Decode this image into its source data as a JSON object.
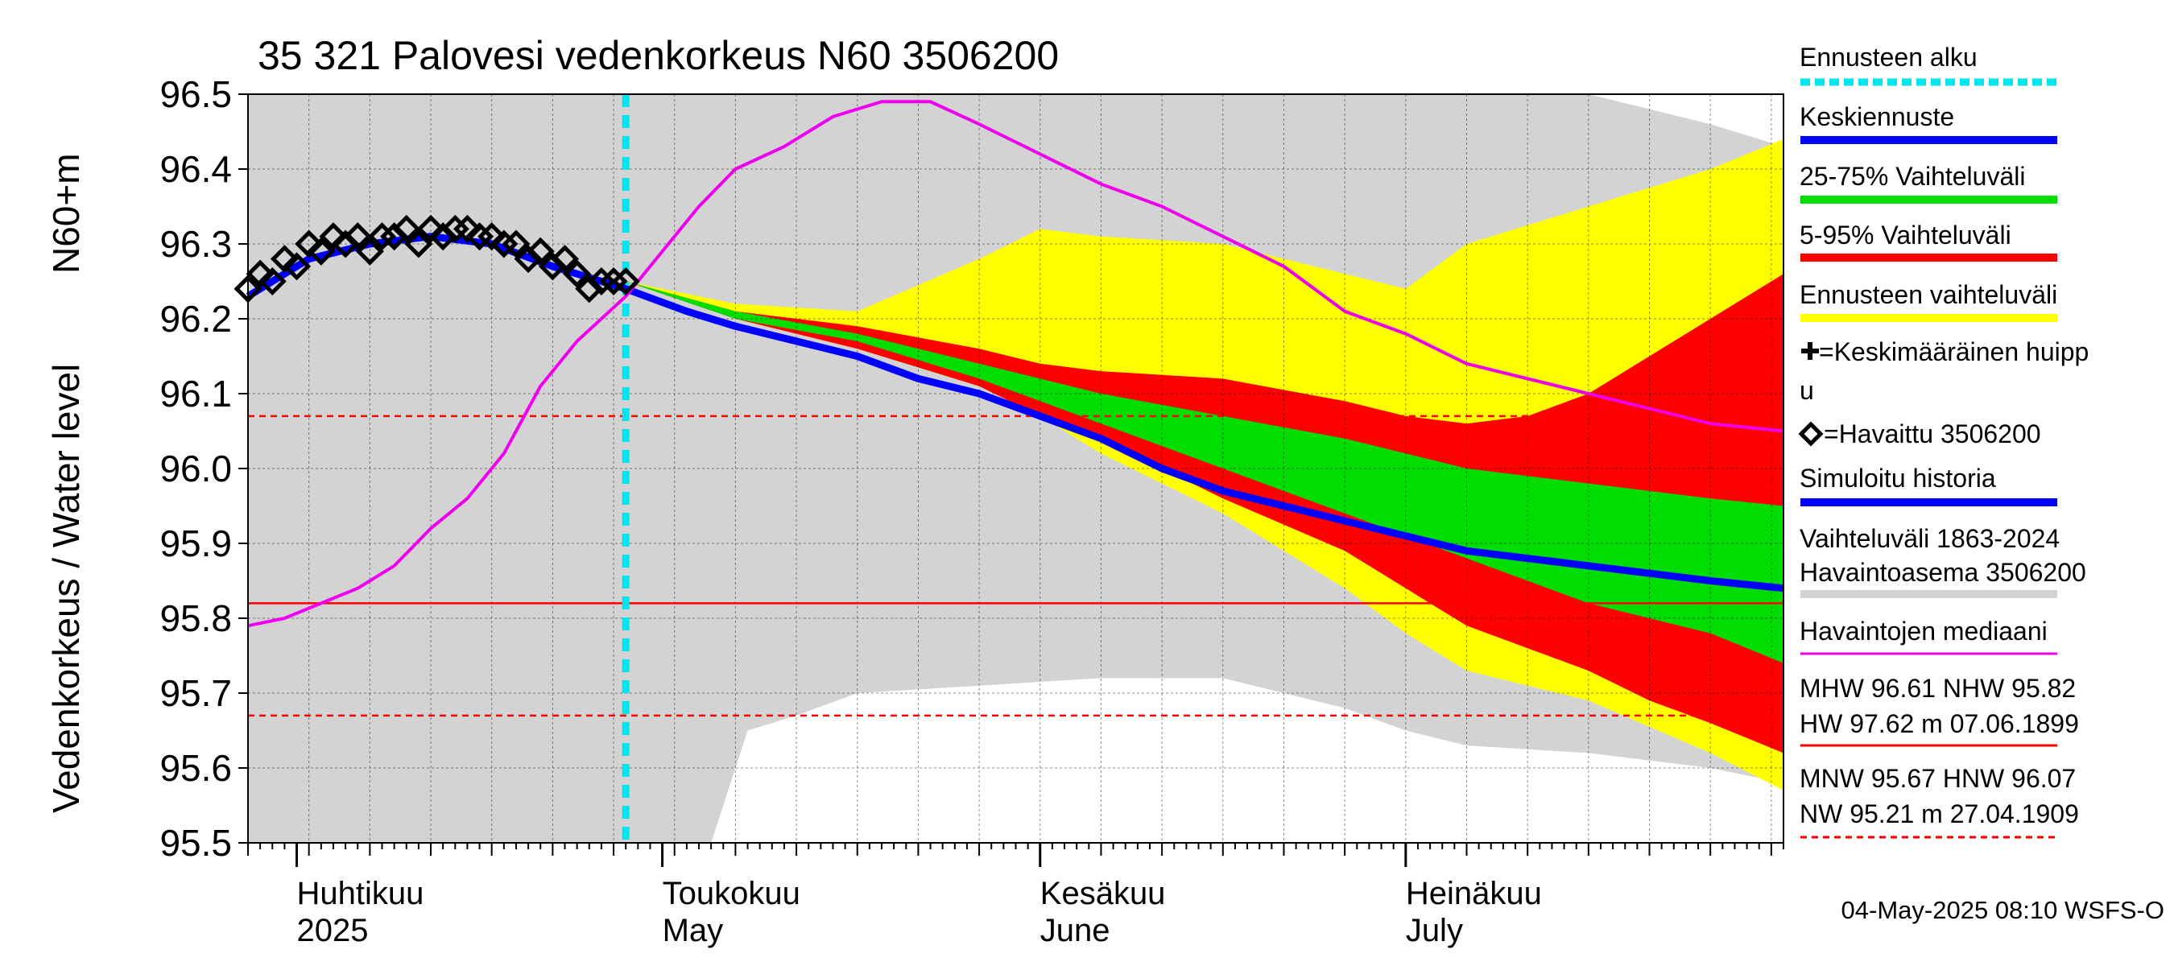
{
  "chart_data": {
    "type": "line",
    "title": "35 321 Palovesi vedenkorkeus N60 3506200",
    "ylabel": "Vedenkorkeus / Water level",
    "ylabel_unit": "N60+m",
    "ylim": [
      95.5,
      96.5
    ],
    "yticks": [
      "95.5",
      "95.6",
      "95.7",
      "95.8",
      "95.9",
      "96.0",
      "96.1",
      "96.2",
      "96.3",
      "96.4",
      "96.5"
    ],
    "x_range_days": [
      0,
      126
    ],
    "x_start_date": "2025-03-28",
    "months": [
      {
        "fi": "Huhtikuu",
        "en": "2025",
        "day": 4
      },
      {
        "fi": "Toukokuu",
        "en": "May",
        "day": 34
      },
      {
        "fi": "Kesäkuu",
        "en": "June",
        "day": 65
      },
      {
        "fi": "Heinäkuu",
        "en": "July",
        "day": 95
      }
    ],
    "forecast_start_day": 31,
    "reference_lines": [
      {
        "name": "NHW",
        "value": 95.82,
        "style": "solid"
      },
      {
        "name": "HNW",
        "value": 96.07,
        "style": "dashed"
      },
      {
        "name": "MNW",
        "value": 95.67,
        "style": "dashed"
      }
    ],
    "series": [
      {
        "name": "Havaittu 3506200",
        "type": "markers",
        "x": [
          0,
          1,
          2,
          3,
          4,
          5,
          6,
          7,
          8,
          9,
          10,
          11,
          12,
          13,
          14,
          15,
          16,
          17,
          18,
          19,
          20,
          21,
          22,
          23,
          24,
          25,
          26,
          27,
          28,
          29,
          30,
          31
        ],
        "y": [
          96.24,
          96.26,
          96.25,
          96.28,
          96.27,
          96.3,
          96.29,
          96.31,
          96.3,
          96.31,
          96.29,
          96.31,
          96.31,
          96.32,
          96.3,
          96.32,
          96.31,
          96.32,
          96.32,
          96.31,
          96.31,
          96.3,
          96.3,
          96.28,
          96.29,
          96.27,
          96.28,
          96.26,
          96.24,
          96.25,
          96.25,
          96.25
        ]
      },
      {
        "name": "Keskiennuste",
        "x": [
          0,
          5,
          10,
          15,
          20,
          25,
          31,
          36,
          40,
          45,
          50,
          55,
          60,
          65,
          70,
          75,
          80,
          85,
          90,
          95,
          100,
          105,
          110,
          115,
          120,
          126
        ],
        "y": [
          96.23,
          96.28,
          96.3,
          96.31,
          96.3,
          96.27,
          96.24,
          96.21,
          96.19,
          96.17,
          96.15,
          96.12,
          96.1,
          96.07,
          96.04,
          96.0,
          95.97,
          95.95,
          95.93,
          95.91,
          95.89,
          95.88,
          95.87,
          95.86,
          95.85,
          95.84
        ]
      },
      {
        "name": "Havaintojen mediaani",
        "x": [
          0,
          3,
          6,
          9,
          12,
          15,
          18,
          21,
          24,
          27,
          31,
          34,
          37,
          40,
          44,
          48,
          52,
          56,
          60,
          65,
          70,
          75,
          80,
          85,
          90,
          95,
          100,
          105,
          110,
          115,
          120,
          126
        ],
        "y": [
          95.79,
          95.8,
          95.82,
          95.84,
          95.87,
          95.92,
          95.96,
          96.02,
          96.11,
          96.17,
          96.23,
          96.29,
          96.35,
          96.4,
          96.43,
          96.47,
          96.49,
          96.49,
          96.46,
          96.42,
          96.38,
          96.35,
          96.31,
          96.27,
          96.21,
          96.18,
          96.14,
          96.12,
          96.1,
          96.08,
          96.06,
          96.05
        ]
      }
    ],
    "bands": [
      {
        "name": "Vaihteluväli 1863-2024",
        "x": [
          0,
          31,
          35,
          38,
          41,
          45,
          50,
          60,
          70,
          80,
          90,
          95,
          100,
          110,
          120,
          126
        ],
        "upper": [
          96.5,
          96.5,
          96.5,
          96.5,
          96.5,
          96.5,
          96.5,
          96.5,
          96.5,
          96.5,
          96.5,
          96.5,
          96.5,
          96.5,
          96.46,
          96.43
        ],
        "lower": [
          95.5,
          95.5,
          95.5,
          95.5,
          95.65,
          95.67,
          95.7,
          95.71,
          95.72,
          95.72,
          95.68,
          95.65,
          95.63,
          95.62,
          95.6,
          95.58
        ]
      },
      {
        "name": "Ennusteen vaihteluväli",
        "x": [
          31,
          40,
          50,
          60,
          65,
          70,
          80,
          90,
          95,
          100,
          110,
          120,
          126
        ],
        "upper": [
          96.25,
          96.22,
          96.21,
          96.28,
          96.32,
          96.31,
          96.3,
          96.26,
          96.24,
          96.3,
          96.35,
          96.4,
          96.44
        ],
        "lower": [
          96.25,
          96.2,
          96.16,
          96.11,
          96.07,
          96.02,
          95.94,
          95.84,
          95.78,
          95.73,
          95.69,
          95.62,
          95.57
        ]
      },
      {
        "name": "5-95% Vaihteluväli",
        "x": [
          31,
          40,
          50,
          60,
          65,
          70,
          80,
          90,
          95,
          100,
          105,
          110,
          115,
          120,
          126
        ],
        "upper": [
          96.25,
          96.21,
          96.19,
          96.16,
          96.14,
          96.13,
          96.12,
          96.09,
          96.07,
          96.06,
          96.07,
          96.1,
          96.15,
          96.2,
          96.26
        ],
        "lower": [
          96.25,
          96.2,
          96.16,
          96.11,
          96.07,
          96.04,
          95.96,
          95.89,
          95.84,
          95.79,
          95.76,
          95.73,
          95.69,
          95.66,
          95.62
        ]
      },
      {
        "name": "25-75% Vaihteluväli",
        "x": [
          31,
          40,
          50,
          60,
          65,
          70,
          80,
          90,
          95,
          100,
          110,
          120,
          126
        ],
        "upper": [
          96.25,
          96.21,
          96.18,
          96.14,
          96.12,
          96.1,
          96.07,
          96.04,
          96.02,
          96.0,
          95.98,
          95.96,
          95.95
        ],
        "lower": [
          96.25,
          96.2,
          96.17,
          96.12,
          96.09,
          96.06,
          96.0,
          95.94,
          95.91,
          95.88,
          95.82,
          95.78,
          95.74
        ]
      }
    ],
    "legend": {
      "placement": "right",
      "items": [
        {
          "label": "Ennusteen alku",
          "color": "#00e5ee",
          "kind": "dashed"
        },
        {
          "label": "Keskiennuste",
          "color": "#0000ff",
          "kind": "line"
        },
        {
          "label": "25-75% Vaihteluväli",
          "color": "#00dd00",
          "kind": "line"
        },
        {
          "label": "5-95% Vaihteluväli",
          "color": "#ff0000",
          "kind": "line"
        },
        {
          "label": "Ennusteen vaihteluväli",
          "color": "#ffff00",
          "kind": "line"
        },
        {
          "label": "=Keskimääräinen huipp",
          "label2": "u",
          "color": "#000000",
          "kind": "plus"
        },
        {
          "label": "=Havaittu 3506200",
          "color": "#000000",
          "kind": "diamond"
        },
        {
          "label": "Simuloitu historia",
          "color": "#0000ff",
          "kind": "line"
        },
        {
          "label": "Vaihteluväli 1863-2024",
          "label2": " Havaintoasema 3506200",
          "color": "#d3d3d3",
          "kind": "line"
        },
        {
          "label": "Havaintojen mediaani",
          "color": "#ee00ee",
          "kind": "thin"
        },
        {
          "label": "MHW  96.61 NHW  95.82",
          "label2": "HW  97.62 m 07.06.1899",
          "color": "#ff0000",
          "kind": "thin"
        },
        {
          "label": "MNW  95.67 HNW  96.07",
          "label2": "NW  95.21 m 27.04.1909",
          "color": "#ff0000",
          "kind": "dashthin"
        }
      ]
    },
    "footer": "04-May-2025 08:10 WSFS-O",
    "colors": {
      "history_band": "#d3d3d3",
      "forecast_band": "#ffff00",
      "band_5_95": "#ff0000",
      "band_25_75": "#00dd00",
      "mean_forecast": "#0000ff",
      "median": "#ee00ee",
      "forecast_start": "#00e5ee",
      "reference": "#ff0000"
    }
  }
}
